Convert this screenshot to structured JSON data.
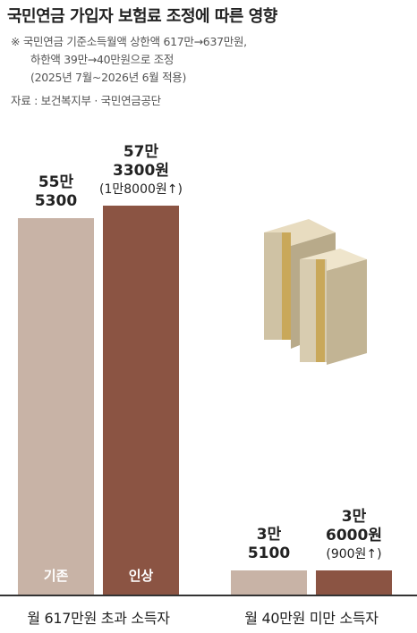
{
  "chart_data": {
    "type": "bar",
    "title": "국민연금 가입자 보험료 조정에 따른 영향",
    "notes": [
      "※ 국민연금 기준소득월액 상한액 617만→637만원,",
      "하한액 39만→40만원으로 조정",
      "(2025년 7월~2026년 6월 적용)"
    ],
    "source": "자료 : 보건복지부 · 국민연금공단",
    "categories": [
      "월 617만원 초과 소득자",
      "월 40만원 미만 소득자"
    ],
    "series": [
      {
        "name": "기존",
        "color": "#c8b3a6",
        "values": [
          555300,
          35100
        ],
        "value_labels": [
          "55만\n5300",
          "3만\n5100"
        ]
      },
      {
        "name": "인상",
        "color": "#8b5443",
        "values": [
          573300,
          36000
        ],
        "value_labels": [
          "57만\n3300원",
          "3만\n6000원"
        ],
        "change_labels": [
          "(1만8000원↑)",
          "(900원↑)"
        ]
      }
    ]
  }
}
